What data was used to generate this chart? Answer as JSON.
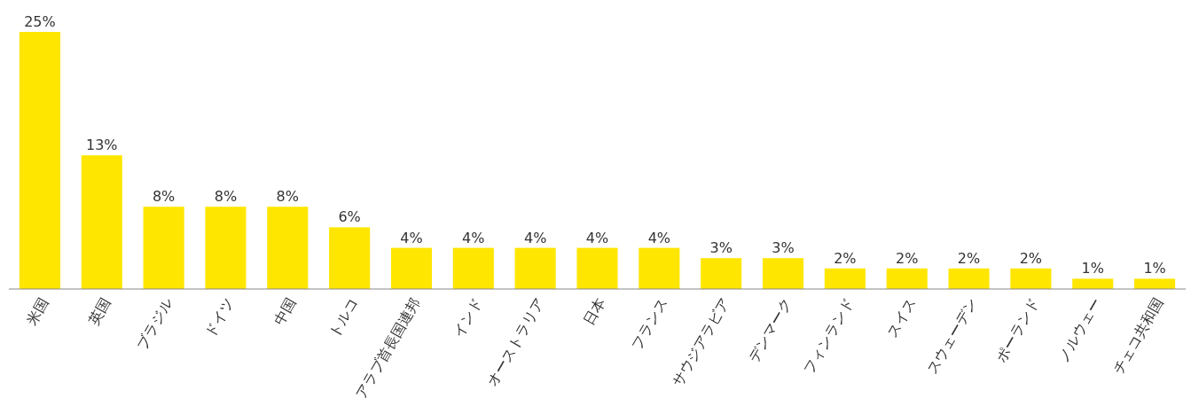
{
  "chart_data": {
    "type": "bar",
    "categories": [
      "米国",
      "英国",
      "ブラジル",
      "ドイツ",
      "中国",
      "トルコ",
      "アラブ首長国連邦",
      "インド",
      "オーストラリア",
      "日本",
      "フランス",
      "サウジアラビア",
      "デンマーク",
      "フィンランド",
      "スイス",
      "スウェーデン",
      "ポーランド",
      "ノルウェー",
      "チェコ共和国"
    ],
    "values": [
      25,
      13,
      8,
      8,
      8,
      6,
      4,
      4,
      4,
      4,
      4,
      3,
      3,
      2,
      2,
      2,
      2,
      1,
      1
    ],
    "value_labels": [
      "25%",
      "13%",
      "8%",
      "8%",
      "8%",
      "6%",
      "4%",
      "4%",
      "4%",
      "4%",
      "4%",
      "3%",
      "3%",
      "2%",
      "2%",
      "2%",
      "2%",
      "1%",
      "1%"
    ],
    "color": "#ffe600"
  }
}
